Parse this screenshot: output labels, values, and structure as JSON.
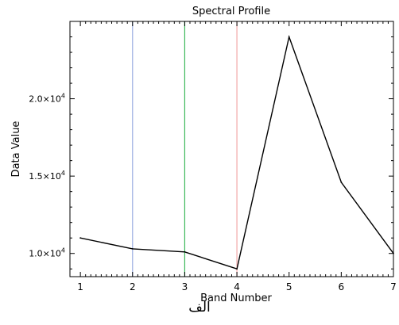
{
  "chart_data": {
    "type": "line",
    "title": "Spectral Profile",
    "xlabel": "Band Number",
    "ylabel": "Data Value",
    "x": [
      1,
      2,
      3,
      4,
      5,
      6,
      7
    ],
    "series": [
      {
        "values": [
          11000,
          10300,
          10100,
          9000,
          24000,
          14600,
          10000
        ],
        "color": "#000000"
      }
    ],
    "xlim": [
      0.8,
      7.0
    ],
    "ylim": [
      8500,
      25000
    ],
    "xticks": [
      1,
      2,
      3,
      4,
      5,
      6,
      7
    ],
    "yticks": [
      {
        "value": 10000,
        "mantissa": "1.0",
        "exp": "4"
      },
      {
        "value": 15000,
        "mantissa": "1.5",
        "exp": "4"
      },
      {
        "value": 20000,
        "mantissa": "2.0",
        "exp": "4"
      }
    ],
    "band_markers": [
      {
        "x": 2,
        "color": "#9aaee0"
      },
      {
        "x": 3,
        "color": "#3cb85a"
      },
      {
        "x": 4,
        "color": "#f2a8a8"
      }
    ],
    "grid": false
  },
  "caption": "الف"
}
